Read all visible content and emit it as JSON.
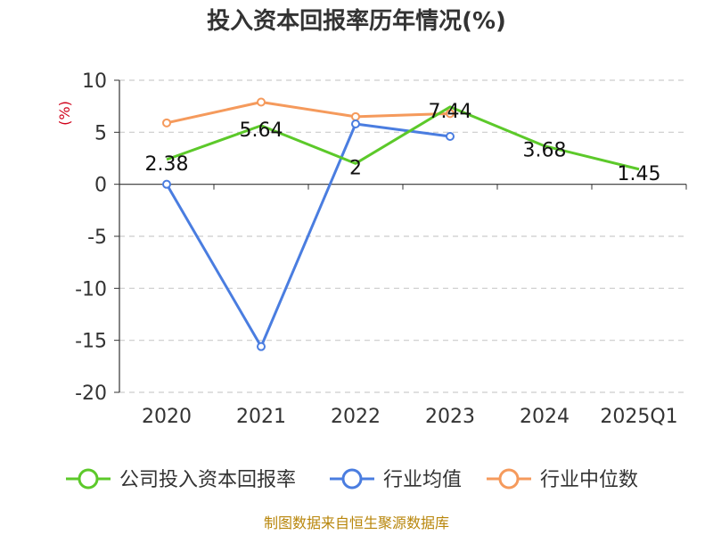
{
  "chart_data": {
    "type": "line",
    "title": "投入资本回报率历年情况(%)",
    "ylabel": "(%)",
    "categories": [
      "2020",
      "2021",
      "2022",
      "2023",
      "2024",
      "2025Q1"
    ],
    "ylim": [
      -20,
      10
    ],
    "yticks": [
      10,
      5,
      0,
      -5,
      -10,
      -15,
      -20
    ],
    "grid": true,
    "legend_position": "bottom",
    "series": [
      {
        "name": "公司投入资本回报率",
        "color": "#5cc92a",
        "values": [
          2.38,
          5.64,
          2,
          7.44,
          3.68,
          1.45
        ],
        "labels": [
          "2.38",
          "5.64",
          "2",
          "7.44",
          "3.68",
          "1.45"
        ]
      },
      {
        "name": "行业均值",
        "color": "#4a7de0",
        "values": [
          0,
          -15.6,
          5.8,
          4.6,
          null,
          null
        ]
      },
      {
        "name": "行业中位数",
        "color": "#f59a5c",
        "values": [
          5.9,
          7.9,
          6.5,
          6.8,
          null,
          null
        ]
      }
    ]
  },
  "source": "制图数据来自恒生聚源数据库"
}
